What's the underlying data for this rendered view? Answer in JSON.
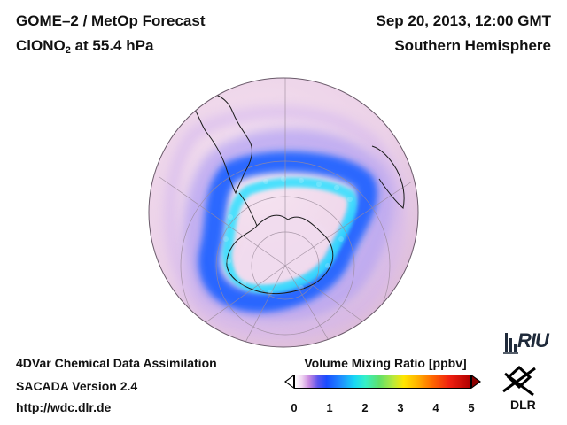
{
  "header": {
    "title_line1": "GOME–2 / MetOp Forecast",
    "species": "ClONO",
    "species_sub": "2",
    "level_text": " at 55.4 hPa",
    "datetime": "Sep 20, 2013, 12:00 GMT",
    "region": "Southern Hemisphere"
  },
  "footer": {
    "line1": "4DVar Chemical Data Assimilation",
    "line2": "SACADA Version 2.4",
    "line3": "http://wdc.dlr.de"
  },
  "colorbar": {
    "title": "Volume Mixing Ratio [ppbv]",
    "ticks": [
      "0",
      "1",
      "2",
      "3",
      "4",
      "5"
    ],
    "min": 0,
    "max": 5
  },
  "logos": {
    "riu": "RIU",
    "dlr": "DLR"
  },
  "map": {
    "projection": "orthographic",
    "center": "South Pole",
    "background_color": "#efd8ec",
    "feature_color": "#2a6cff"
  }
}
